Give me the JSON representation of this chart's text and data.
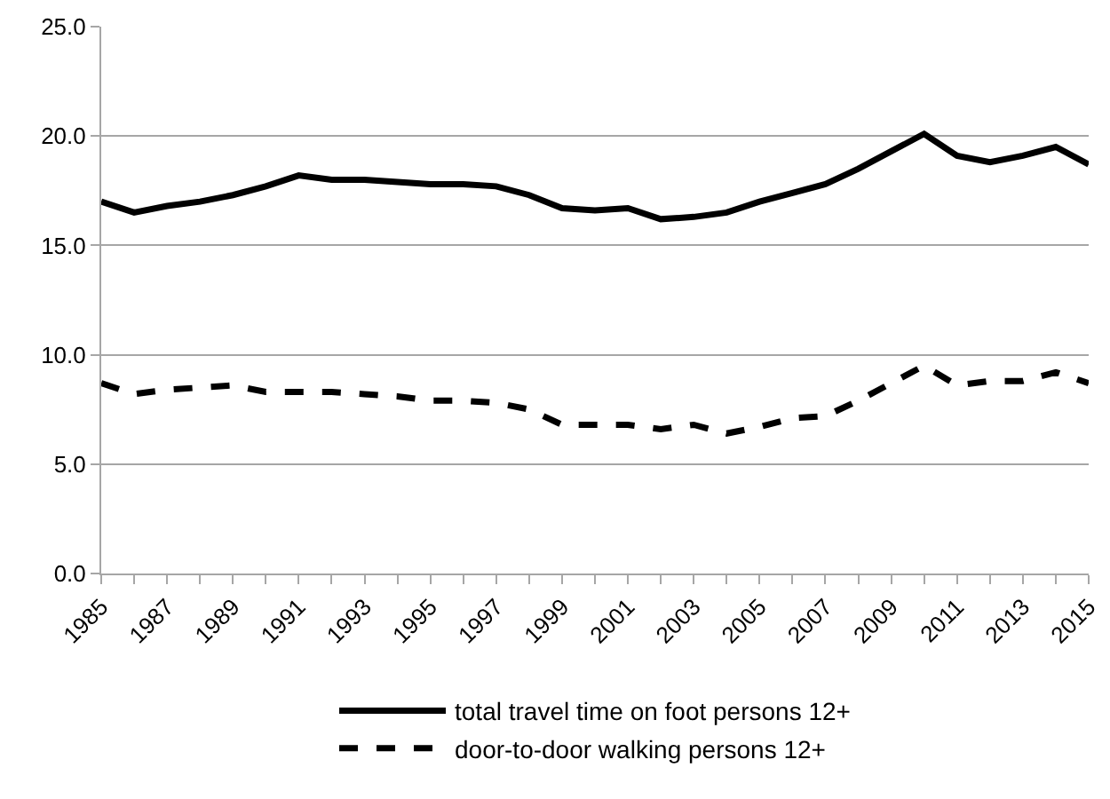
{
  "chart_data": {
    "type": "line",
    "x": [
      1985,
      1986,
      1987,
      1988,
      1989,
      1990,
      1991,
      1992,
      1993,
      1994,
      1995,
      1996,
      1997,
      1998,
      1999,
      2000,
      2001,
      2002,
      2003,
      2004,
      2005,
      2006,
      2007,
      2008,
      2009,
      2010,
      2011,
      2012,
      2013,
      2014,
      2015
    ],
    "series": [
      {
        "name": "total travel time on foot persons 12+",
        "color": "#000000",
        "line_style": "solid",
        "values": [
          17.0,
          16.5,
          16.8,
          17.0,
          17.3,
          17.7,
          18.2,
          18.0,
          18.0,
          17.9,
          17.8,
          17.8,
          17.7,
          17.3,
          16.7,
          16.6,
          16.7,
          16.2,
          16.3,
          16.5,
          17.0,
          17.4,
          17.8,
          18.5,
          19.3,
          20.1,
          19.1,
          18.8,
          19.1,
          19.5,
          18.7
        ]
      },
      {
        "name": "door-to-door walking persons 12+",
        "color": "#000000",
        "line_style": "dashed",
        "values": [
          8.7,
          8.2,
          8.4,
          8.5,
          8.6,
          8.3,
          8.3,
          8.3,
          8.2,
          8.1,
          7.9,
          7.9,
          7.8,
          7.5,
          6.8,
          6.8,
          6.8,
          6.6,
          6.8,
          6.4,
          6.7,
          7.1,
          7.2,
          7.9,
          8.7,
          9.5,
          8.6,
          8.8,
          8.8,
          9.2,
          8.7
        ]
      }
    ],
    "xlim": [
      1985,
      2015
    ],
    "xticks": [
      1985,
      {
        "value": 1986,
        "label": null
      },
      1987,
      {
        "value": 1988,
        "label": null
      },
      1989,
      {
        "value": 1990,
        "label": null
      },
      1991,
      {
        "value": 1992,
        "label": null
      },
      1993,
      {
        "value": 1994,
        "label": null
      },
      1995,
      {
        "value": 1996,
        "label": null
      },
      1997,
      {
        "value": 1998,
        "label": null
      },
      1999,
      {
        "value": 2000,
        "label": null
      },
      2001,
      {
        "value": 2002,
        "label": null
      },
      2003,
      {
        "value": 2004,
        "label": null
      },
      2005,
      {
        "value": 2006,
        "label": null
      },
      2007,
      {
        "value": 2008,
        "label": null
      },
      2009,
      {
        "value": 2010,
        "label": null
      },
      2011,
      {
        "value": 2012,
        "label": null
      },
      2013,
      {
        "value": 2014,
        "label": null
      },
      2015
    ],
    "ylim": [
      0,
      25
    ],
    "yticks": [
      {
        "value": 0,
        "label": "0.0"
      },
      {
        "value": 5,
        "label": "5.0"
      },
      {
        "value": 10,
        "label": "10.0"
      },
      {
        "value": 15,
        "label": "15.0"
      },
      {
        "value": 20,
        "label": "20.0"
      },
      {
        "value": 25,
        "label": "25.0"
      }
    ],
    "grid": "y",
    "legend": "bottom",
    "marker": "none"
  }
}
